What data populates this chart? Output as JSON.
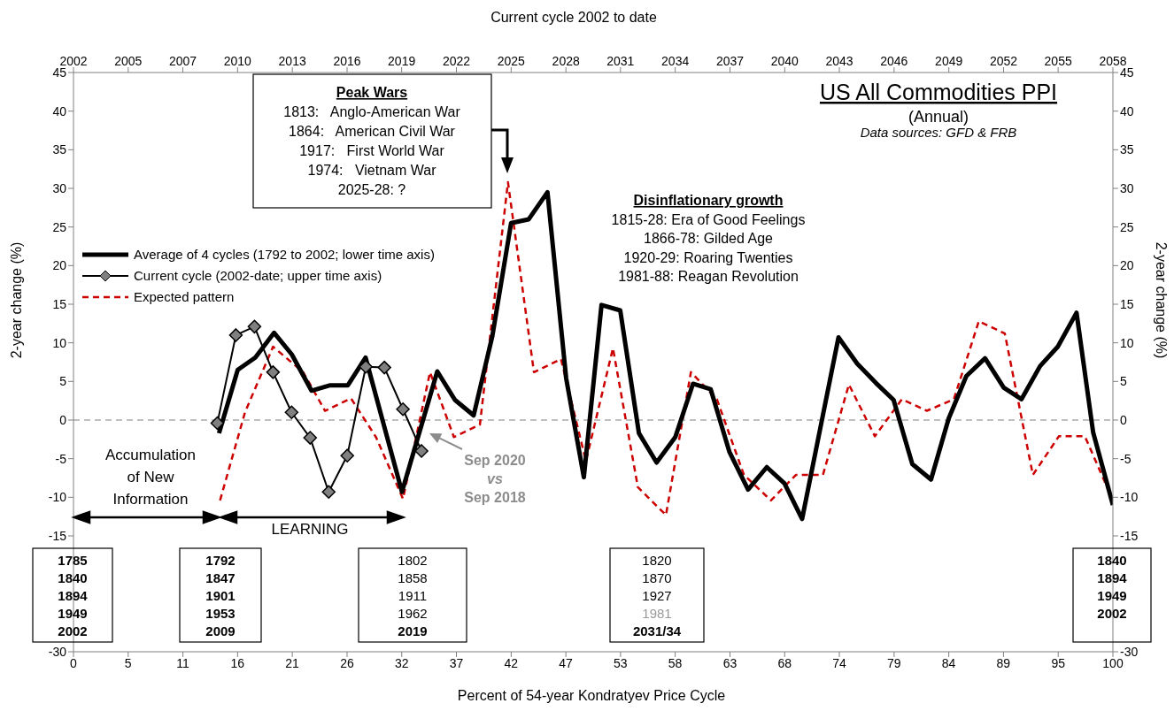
{
  "chart_data": {
    "type": "line",
    "title": "US All Commodities PPI",
    "subtitle": "(Annual)",
    "xlabel": "Percent of 54-year Kondratyev Price Cycle",
    "x2label": "Current cycle 2002 to date",
    "ylabel": "2-year change (%)",
    "y2label": "2-year change (%)",
    "annotations": [
      "Data sources: GFD & FRB",
      "Peak Wars\n1813:   Anglo-American War\n1864:   American Civil War\n1917:   First World War\n1974:   Vietnam War\n2025-28: ?",
      "Disinflationary growth\n1815-28: Era of Good Feelings\n1866-78: Gilded Age\n1920-29: Roaring Twenties\n1981-88: Reagan Revolution",
      "Accumulation\nof New\nInformation",
      "LEARNING",
      "Sep 2020\nvs\nSep 2018",
      "1785\n1840\n1894\n1949\n2002",
      "1792\n1847\n1901\n1953\n2009",
      "1802\n1858\n1911\n1962\n2019",
      "1820\n1870\n1927\n1981\n2031/34",
      "1840\n1894\n1949\n2002"
    ],
    "series": [
      {
        "name": "Average of 4 cycles (1792 to 2002; lower time axis)",
        "color": "#000000",
        "line_style": "solid",
        "marker": "none",
        "x": [
          14.0,
          15.8,
          17.5,
          19.3,
          21.0,
          22.9,
          24.7,
          26.4,
          28.1,
          31.6,
          35.0,
          36.7,
          38.5,
          40.3,
          42.1,
          43.8,
          45.6,
          47.4,
          49.1,
          50.8,
          52.6,
          54.4,
          56.1,
          57.9,
          59.6,
          61.3,
          63.1,
          64.9,
          66.7,
          68.4,
          70.1,
          73.6,
          75.4,
          77.2,
          78.9,
          80.7,
          82.5,
          84.2,
          85.9,
          87.7,
          89.5,
          91.2,
          93.0,
          94.7,
          96.5,
          98.1,
          100
        ],
        "values": [
          -1.7,
          6.5,
          8.1,
          11.3,
          8.5,
          3.8,
          4.5,
          4.5,
          8.1,
          -9.3,
          6.3,
          2.6,
          0.6,
          10.9,
          25.5,
          26.0,
          29.5,
          5.4,
          -7.4,
          14.9,
          14.2,
          -1.7,
          -5.5,
          -2.2,
          4.7,
          4.0,
          -4.1,
          -9.0,
          -6.1,
          -8.2,
          -12.8,
          10.7,
          7.3,
          4.8,
          2.6,
          -5.7,
          -7.7,
          0.2,
          5.7,
          8.0,
          4.2,
          2.7,
          7.0,
          9.5,
          13.9,
          -1.6,
          -11.0
        ]
      },
      {
        "name": "Current cycle (2002-date; upper time axis)",
        "color": "#000000",
        "line_style": "solid",
        "marker": "diamond",
        "axis": "x2",
        "x": [
          2009.35,
          2010.35,
          2011.35,
          2012.35,
          2013.35,
          2014.35,
          2015.35,
          2016.35,
          2017.35,
          2018.35,
          2019.35,
          2020.35
        ],
        "values": [
          -0.4,
          11.0,
          12.1,
          6.2,
          1.0,
          -2.3,
          -9.3,
          -4.6,
          6.9,
          6.8,
          1.4,
          -4.0
        ]
      },
      {
        "name": "Expected pattern",
        "color": "#cc0000",
        "line_style": "dashed",
        "marker": "none",
        "x": [
          14.1,
          16.5,
          19.2,
          22.1,
          24.2,
          26.7,
          29.1,
          31.7,
          34.3,
          36.6,
          39.1,
          41.8,
          44.3,
          46.9,
          49.3,
          51.9,
          54.3,
          57.0,
          59.4,
          61.9,
          64.5,
          67.1,
          69.5,
          72.1,
          74.6,
          77.1,
          79.7,
          82.1,
          84.7,
          87.1,
          89.6,
          92.3,
          94.8,
          97.3,
          100
        ],
        "values": [
          -10.4,
          1.0,
          9.5,
          6.2,
          1.2,
          2.8,
          -2.2,
          -10.2,
          6.2,
          -2.2,
          -0.6,
          30.8,
          6.2,
          7.9,
          -5.3,
          9.3,
          -8.7,
          -12.3,
          6.2,
          2.7,
          -7.1,
          -10.4,
          -7.1,
          -7.1,
          4.6,
          -2.1,
          2.7,
          1.2,
          2.7,
          12.8,
          11.2,
          -7.1,
          -2.1,
          -2.1,
          -10.4
        ]
      }
    ],
    "xlim": [
      0,
      100
    ],
    "xticks": [
      0,
      {
        "value": 5.26,
        "label": "5"
      },
      {
        "value": 10.53,
        "label": "11"
      },
      {
        "value": 15.79,
        "label": "16"
      },
      {
        "value": 21.05,
        "label": "21"
      },
      {
        "value": 26.32,
        "label": "26"
      },
      {
        "value": 31.58,
        "label": "32"
      },
      {
        "value": 36.84,
        "label": "37"
      },
      {
        "value": 42.11,
        "label": "42"
      },
      {
        "value": 47.37,
        "label": "47"
      },
      {
        "value": 52.63,
        "label": "53"
      },
      {
        "value": 57.89,
        "label": "58"
      },
      {
        "value": 63.16,
        "label": "63"
      },
      {
        "value": 68.42,
        "label": "68"
      },
      {
        "value": 73.68,
        "label": "74"
      },
      {
        "value": 78.95,
        "label": "79"
      },
      {
        "value": 84.21,
        "label": "84"
      },
      {
        "value": 89.47,
        "label": "89"
      },
      {
        "value": 94.74,
        "label": "95"
      },
      100
    ],
    "x2lim": [
      2001.6,
      2057.6
    ],
    "x2ticks": [
      {
        "value": 2001.6,
        "label": "2002"
      },
      {
        "value": 2004.55,
        "label": "2005"
      },
      {
        "value": 2007.49,
        "label": "2007"
      },
      {
        "value": 2010.44,
        "label": "2010"
      },
      {
        "value": 2013.39,
        "label": "2013"
      },
      {
        "value": 2016.34,
        "label": "2016"
      },
      {
        "value": 2019.28,
        "label": "2019"
      },
      {
        "value": 2022.23,
        "label": "2022"
      },
      {
        "value": 2025.18,
        "label": "2025"
      },
      {
        "value": 2028.13,
        "label": "2028"
      },
      {
        "value": 2031.07,
        "label": "2031"
      },
      {
        "value": 2034.02,
        "label": "2034"
      },
      {
        "value": 2036.97,
        "label": "2037"
      },
      {
        "value": 2039.92,
        "label": "2040"
      },
      {
        "value": 2042.86,
        "label": "2043"
      },
      {
        "value": 2045.81,
        "label": "2046"
      },
      {
        "value": 2048.76,
        "label": "2049"
      },
      {
        "value": 2051.71,
        "label": "2052"
      },
      {
        "value": 2054.65,
        "label": "2055"
      },
      {
        "value": 2057.6,
        "label": "2058"
      }
    ],
    "ylim": [
      -30,
      45
    ],
    "yticks": [
      -30,
      -15,
      -10,
      -5,
      0,
      5,
      10,
      15,
      20,
      25,
      30,
      35,
      40,
      45
    ],
    "y2lim": [
      -30,
      45
    ],
    "y2ticks": [
      -30,
      -15,
      -10,
      -5,
      0,
      5,
      10,
      15,
      20,
      25,
      30,
      35,
      40,
      45
    ],
    "ref_lines": [
      {
        "axis": "y",
        "value": 0,
        "color": "#808080",
        "line_style": "dashed"
      }
    ],
    "grid": false,
    "legend": "top left"
  }
}
